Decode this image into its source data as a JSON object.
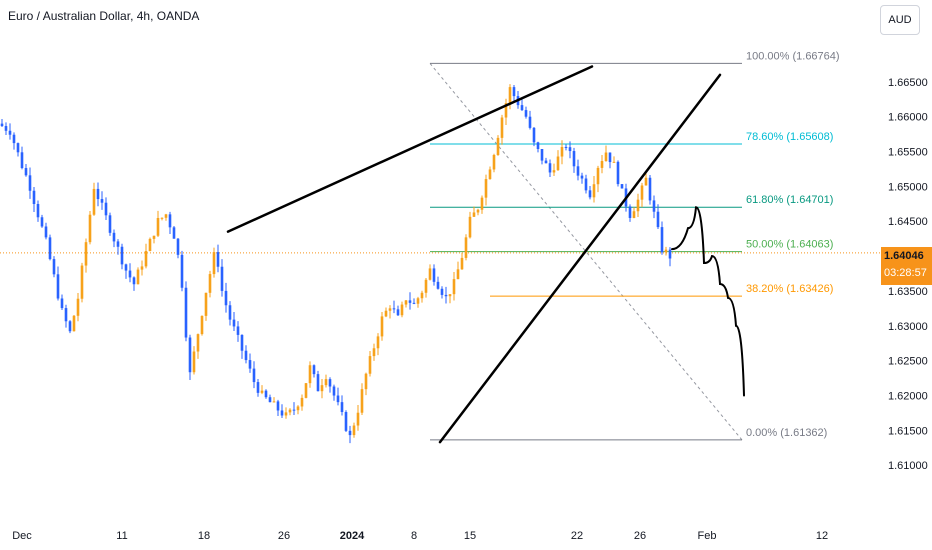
{
  "header": {
    "symbol_title": "Euro / Australian Dollar, 4h, OANDA",
    "currency_button": "AUD",
    "last_price": "1.64046",
    "countdown": "03:28:57"
  },
  "colors": {
    "up": "#f7a21b",
    "down": "#2962ff",
    "price_line": "#f7931a",
    "fib_100": "#787b86",
    "fib_786": "#00bcd4",
    "fib_618": "#089981",
    "fib_50": "#4caf50",
    "fib_382": "#ff9800",
    "fib_0": "#787b86",
    "drawing": "#000000"
  },
  "chart_data": {
    "type": "candlestick",
    "title": "Euro / Australian Dollar, 4h, OANDA",
    "y_range": [
      1.605,
      1.671
    ],
    "y_ticks": [
      "1.66500",
      "1.66000",
      "1.65500",
      "1.65000",
      "1.64500",
      "1.64000",
      "1.63500",
      "1.63000",
      "1.62500",
      "1.62000",
      "1.61500",
      "1.61000"
    ],
    "x_ticks": [
      "Dec",
      "11",
      "18",
      "26",
      "2024",
      "8",
      "15",
      "22",
      "26",
      "Feb",
      "12"
    ],
    "fibonacci": [
      {
        "level": "100.00%",
        "price": "1.66764"
      },
      {
        "level": "78.60%",
        "price": "1.65608"
      },
      {
        "level": "61.80%",
        "price": "1.64701"
      },
      {
        "level": "50.00%",
        "price": "1.64063"
      },
      {
        "level": "38.20%",
        "price": "1.63426"
      },
      {
        "level": "0.00%",
        "price": "1.61362"
      }
    ],
    "price_path": [
      [
        0,
        1.659
      ],
      [
        3,
        1.658
      ],
      [
        6,
        1.653
      ],
      [
        8,
        1.65
      ],
      [
        10,
        1.646
      ],
      [
        12,
        1.642
      ],
      [
        14,
        1.637
      ],
      [
        16,
        1.632
      ],
      [
        18,
        1.629
      ],
      [
        20,
        1.634
      ],
      [
        22,
        1.642
      ],
      [
        24,
        1.65
      ],
      [
        26,
        1.647
      ],
      [
        28,
        1.644
      ],
      [
        30,
        1.641
      ],
      [
        32,
        1.638
      ],
      [
        34,
        1.636
      ],
      [
        36,
        1.639
      ],
      [
        38,
        1.642
      ],
      [
        40,
        1.645
      ],
      [
        42,
        1.646
      ],
      [
        44,
        1.643
      ],
      [
        45,
        1.64
      ],
      [
        46,
        1.636
      ],
      [
        47,
        1.629
      ],
      [
        48,
        1.623
      ],
      [
        50,
        1.629
      ],
      [
        52,
        1.635
      ],
      [
        54,
        1.64
      ],
      [
        55,
        1.639
      ],
      [
        56,
        1.635
      ],
      [
        58,
        1.631
      ],
      [
        60,
        1.628
      ],
      [
        62,
        1.625
      ],
      [
        64,
        1.622
      ],
      [
        66,
        1.62
      ],
      [
        68,
        1.619
      ],
      [
        70,
        1.618
      ],
      [
        72,
        1.617
      ],
      [
        74,
        1.618
      ],
      [
        76,
        1.62
      ],
      [
        78,
        1.624
      ],
      [
        80,
        1.621
      ],
      [
        82,
        1.623
      ],
      [
        84,
        1.62
      ],
      [
        86,
        1.617
      ],
      [
        88,
        1.614
      ],
      [
        90,
        1.618
      ],
      [
        92,
        1.623
      ],
      [
        94,
        1.627
      ],
      [
        96,
        1.631
      ],
      [
        98,
        1.633
      ],
      [
        100,
        1.631
      ],
      [
        102,
        1.634
      ],
      [
        104,
        1.633
      ],
      [
        106,
        1.635
      ],
      [
        108,
        1.638
      ],
      [
        110,
        1.636
      ],
      [
        112,
        1.634
      ],
      [
        114,
        1.636
      ],
      [
        116,
        1.64
      ],
      [
        118,
        1.645
      ],
      [
        120,
        1.647
      ],
      [
        122,
        1.651
      ],
      [
        124,
        1.655
      ],
      [
        126,
        1.66
      ],
      [
        128,
        1.664
      ],
      [
        130,
        1.662
      ],
      [
        132,
        1.66
      ],
      [
        134,
        1.656
      ],
      [
        136,
        1.654
      ],
      [
        138,
        1.652
      ],
      [
        140,
        1.654
      ],
      [
        142,
        1.656
      ],
      [
        144,
        1.653
      ],
      [
        146,
        1.651
      ],
      [
        148,
        1.649
      ],
      [
        150,
        1.653
      ],
      [
        152,
        1.655
      ],
      [
        154,
        1.653
      ],
      [
        156,
        1.649
      ],
      [
        158,
        1.646
      ],
      [
        160,
        1.648
      ],
      [
        162,
        1.651
      ],
      [
        164,
        1.646
      ],
      [
        166,
        1.641
      ],
      [
        168,
        1.64
      ]
    ],
    "n_points": 168,
    "drawings": [
      {
        "kind": "trendline",
        "from": [
          57,
          1.6435
        ],
        "to": [
          148,
          1.6672
        ]
      },
      {
        "kind": "trendline",
        "from": [
          110,
          1.6133
        ],
        "to": [
          180,
          1.666
        ]
      },
      {
        "kind": "projection",
        "points": [
          [
            168,
            1.641
          ],
          [
            172,
            1.644
          ],
          [
            174,
            1.647
          ],
          [
            176,
            1.639
          ],
          [
            178,
            1.64
          ],
          [
            180,
            1.636
          ],
          [
            182,
            1.634
          ],
          [
            184,
            1.63
          ],
          [
            186,
            1.62
          ]
        ]
      }
    ]
  }
}
